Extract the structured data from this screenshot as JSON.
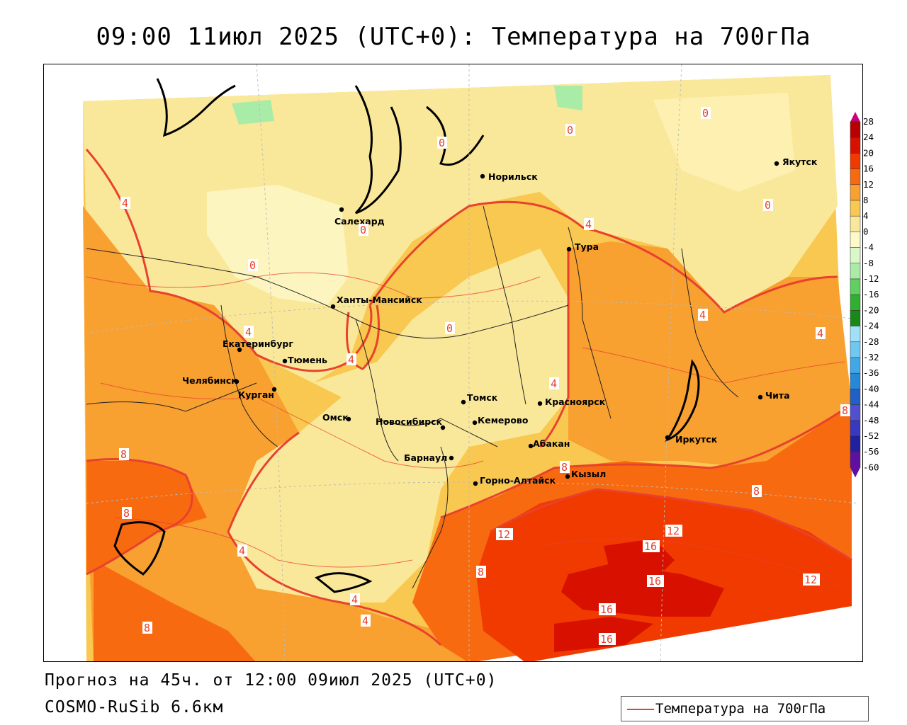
{
  "title": "09:00 11июл 2025 (UTC+0): Температура на 700гПа",
  "footer": {
    "forecast": "Прогноз на 45ч. от 12:00 09июл 2025 (UTC+0)",
    "model": "COSMO-RuSib 6.6км"
  },
  "legend": {
    "label": "Температура на 700гПа",
    "color": "#e8412e"
  },
  "colorbar": {
    "ticks": [
      "28",
      "24",
      "20",
      "16",
      "12",
      "8",
      "4",
      "0",
      "-4",
      "-8",
      "-12",
      "-16",
      "-20",
      "-24",
      "-28",
      "-32",
      "-36",
      "-40",
      "-44",
      "-48",
      "-52",
      "-56",
      "-60"
    ],
    "colors": [
      "#c8007a",
      "#b80000",
      "#d81000",
      "#f03a00",
      "#f86a10",
      "#f8a030",
      "#f8c850",
      "#fae89a",
      "#fdfac8",
      "#d8f8c8",
      "#a8eca8",
      "#60d060",
      "#30b030",
      "#188818",
      "#a0e0f8",
      "#70c8f0",
      "#40a8e8",
      "#2888d8",
      "#2060c8",
      "#5050d0",
      "#3838c0",
      "#2020a0",
      "#6010a0"
    ]
  },
  "cities": [
    {
      "name": "Норильск"
    },
    {
      "name": "Якутск"
    },
    {
      "name": "Салехард"
    },
    {
      "name": "Тура"
    },
    {
      "name": "Ханты-Мансийск"
    },
    {
      "name": "Екатеринбург"
    },
    {
      "name": "Тюмень"
    },
    {
      "name": "Челябинск"
    },
    {
      "name": "Курган"
    },
    {
      "name": "Омск"
    },
    {
      "name": "Томск"
    },
    {
      "name": "Красноярск"
    },
    {
      "name": "Новосибирск"
    },
    {
      "name": "Кемерово"
    },
    {
      "name": "Барнаул"
    },
    {
      "name": "Абакан"
    },
    {
      "name": "Горно-Алтайск"
    },
    {
      "name": "Кызыл"
    },
    {
      "name": "Иркутск"
    },
    {
      "name": "Чита"
    }
  ],
  "contour_labels": [
    "0",
    "0",
    "0",
    "0",
    "0",
    "0",
    "0",
    "4",
    "4",
    "4",
    "4",
    "4",
    "4",
    "4",
    "4",
    "4",
    "4",
    "8",
    "8",
    "8",
    "8",
    "8",
    "8",
    "8",
    "12",
    "12",
    "12",
    "16",
    "16",
    "16",
    "16"
  ]
}
